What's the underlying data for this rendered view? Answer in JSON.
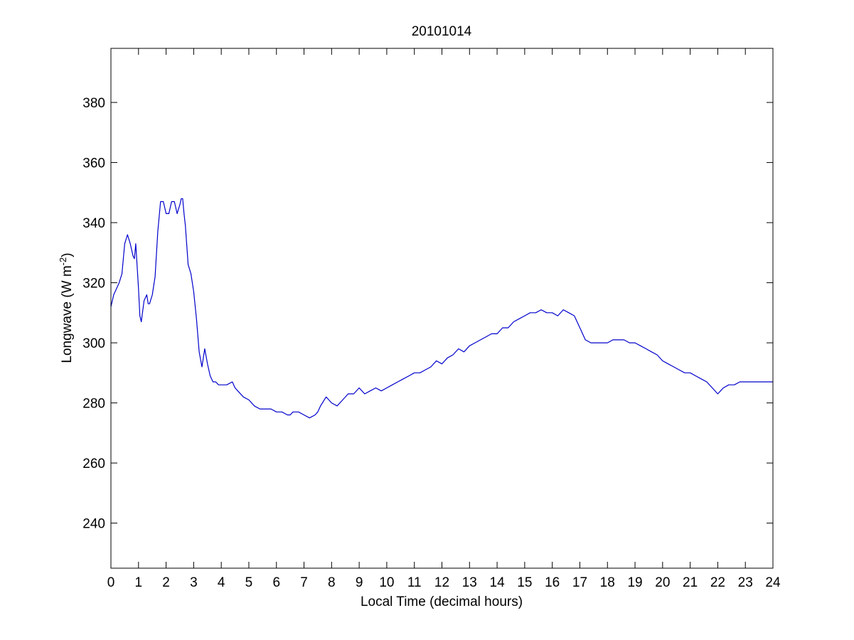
{
  "chart_data": {
    "type": "line",
    "title": "20101014",
    "xlabel": "Local Time (decimal hours)",
    "ylabel": {
      "text": "Longwave (W m",
      "superscript": "-2",
      "suffix": ")"
    },
    "xlim": [
      0,
      24
    ],
    "ylim": [
      225,
      398
    ],
    "xticks": [
      0,
      1,
      2,
      3,
      4,
      5,
      6,
      7,
      8,
      9,
      10,
      11,
      12,
      13,
      14,
      15,
      16,
      17,
      18,
      19,
      20,
      21,
      22,
      23,
      24
    ],
    "xtick_labels": [
      "0",
      "1",
      "2",
      "3",
      "4",
      "5",
      "6",
      "7",
      "8",
      "9",
      "10",
      "11",
      "12",
      "13",
      "14",
      "15",
      "16",
      "17",
      "18",
      "19",
      "20",
      "21",
      "22",
      "23",
      "24"
    ],
    "yticks": [
      240,
      260,
      280,
      300,
      320,
      340,
      360,
      380
    ],
    "ytick_labels": [
      "240",
      "260",
      "280",
      "300",
      "320",
      "340",
      "360",
      "380"
    ],
    "grid": false,
    "box": true,
    "line_color": "#0000cc",
    "series": [
      {
        "x": [
          0,
          0.1,
          0.2,
          0.3,
          0.4,
          0.5,
          0.6,
          0.7,
          0.8,
          0.85,
          0.9,
          1.0,
          1.05,
          1.1,
          1.2,
          1.3,
          1.35,
          1.4,
          1.5,
          1.6,
          1.7,
          1.8,
          1.9,
          2.0,
          2.1,
          2.2,
          2.3,
          2.4,
          2.5,
          2.55,
          2.6,
          2.65,
          2.7,
          2.8,
          2.9,
          3.0,
          3.1,
          3.2,
          3.3,
          3.4,
          3.5,
          3.6,
          3.7,
          3.8,
          3.9,
          4.0,
          4.2,
          4.4,
          4.5,
          4.6,
          4.8,
          5.0,
          5.2,
          5.4,
          5.5,
          5.6,
          5.8,
          6.0,
          6.2,
          6.4,
          6.5,
          6.6,
          6.8,
          7.0,
          7.2,
          7.4,
          7.5,
          7.6,
          7.8,
          7.9,
          8.0,
          8.2,
          8.4,
          8.6,
          8.8,
          9.0,
          9.2,
          9.4,
          9.6,
          9.8,
          10.0,
          10.2,
          10.4,
          10.6,
          10.8,
          11.0,
          11.2,
          11.4,
          11.6,
          11.8,
          12.0,
          12.2,
          12.4,
          12.6,
          12.8,
          13.0,
          13.2,
          13.4,
          13.6,
          13.8,
          14.0,
          14.2,
          14.4,
          14.6,
          14.8,
          15.0,
          15.2,
          15.4,
          15.6,
          15.8,
          16.0,
          16.2,
          16.4,
          16.6,
          16.8,
          17.0,
          17.2,
          17.4,
          17.6,
          17.8,
          18.0,
          18.2,
          18.4,
          18.6,
          18.8,
          19.0,
          19.2,
          19.4,
          19.6,
          19.8,
          20.0,
          20.2,
          20.4,
          20.6,
          20.8,
          21.0,
          21.2,
          21.4,
          21.6,
          21.8,
          22.0,
          22.1,
          22.2,
          22.4,
          22.6,
          22.8,
          23.0,
          23.2,
          23.4,
          23.6,
          23.8,
          24.0
        ],
        "values": [
          312,
          316,
          318,
          320,
          323,
          333,
          336,
          333,
          329,
          328,
          333,
          318,
          309,
          307,
          314,
          316,
          313,
          313,
          316,
          322,
          337,
          347,
          347,
          343,
          343,
          347,
          347,
          343,
          346,
          348,
          348,
          343,
          339,
          326,
          323,
          317,
          308,
          297,
          292,
          298,
          293,
          289,
          287,
          287,
          286,
          286,
          286,
          287,
          285,
          284,
          282,
          281,
          279,
          278,
          278,
          278,
          278,
          277,
          277,
          276,
          276,
          277,
          277,
          276,
          275,
          276,
          277,
          279,
          282,
          281,
          280,
          279,
          281,
          283,
          283,
          285,
          283,
          284,
          285,
          284,
          285,
          286,
          287,
          288,
          289,
          290,
          290,
          291,
          292,
          294,
          293,
          295,
          296,
          298,
          297,
          299,
          300,
          301,
          302,
          303,
          303,
          305,
          305,
          307,
          308,
          309,
          310,
          310,
          311,
          310,
          310,
          309,
          311,
          310,
          309,
          305,
          301,
          300,
          300,
          300,
          300,
          301,
          301,
          301,
          300,
          300,
          299,
          298,
          297,
          296,
          294,
          293,
          292,
          291,
          290,
          290,
          289,
          288,
          287,
          285,
          283,
          284,
          285,
          286,
          286,
          287,
          287,
          287,
          287,
          287,
          287,
          287
        ]
      }
    ]
  }
}
